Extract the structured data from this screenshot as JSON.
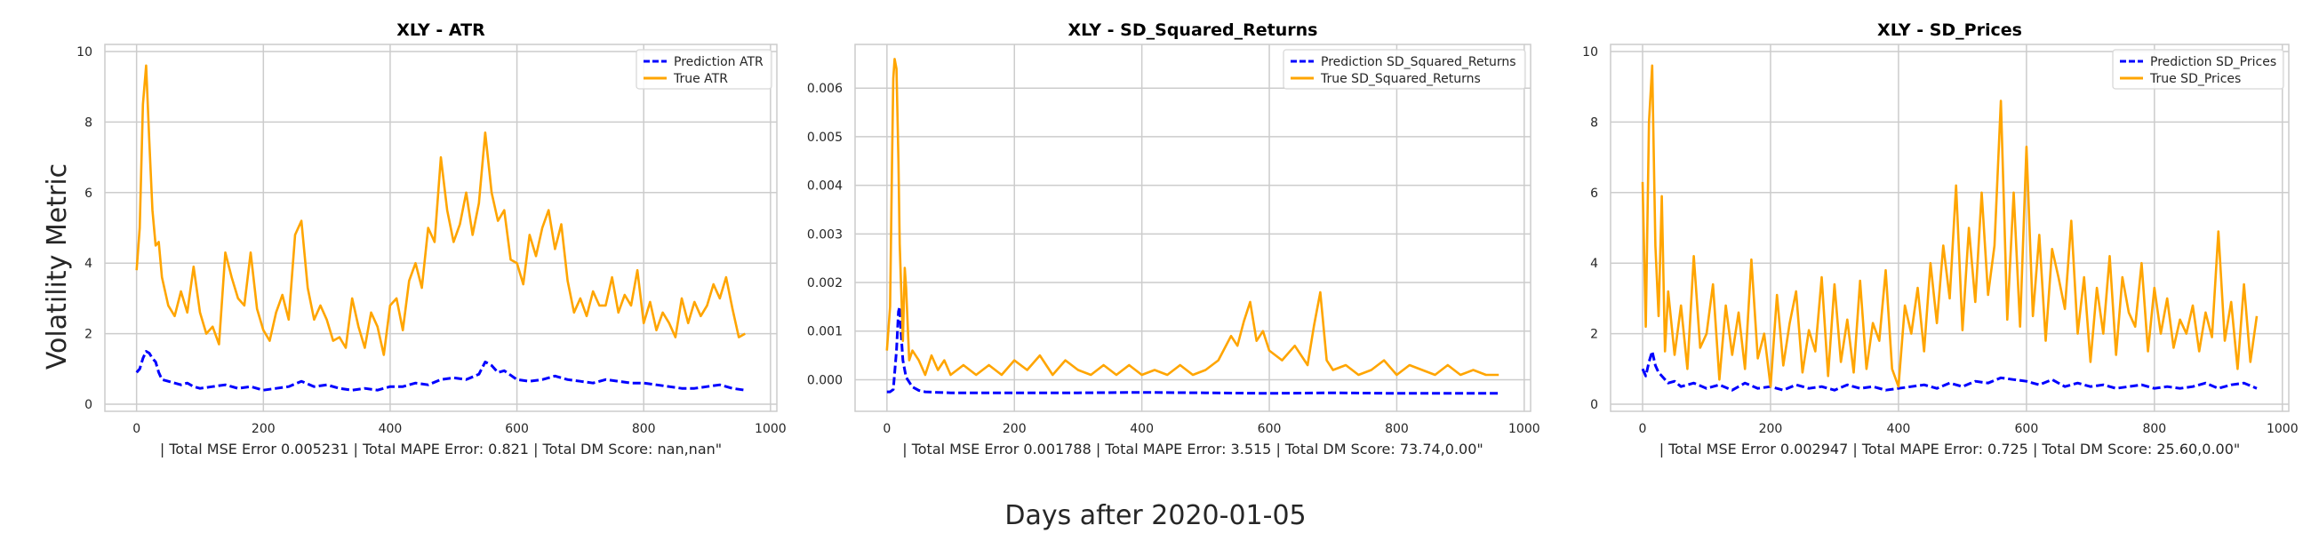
{
  "figure": {
    "supxlabel": "Days after 2020-01-05",
    "supylabel": "Volatility Metric"
  },
  "chart_data": [
    {
      "type": "line",
      "title": "XLY - ATR",
      "xlabel": "| Total MSE Error 0.005231 | Total MAPE Error: 0.821 | Total DM Score: nan,nan\"",
      "xlim": [
        -50,
        1010
      ],
      "ylim": [
        -0.2,
        10.2
      ],
      "xticks": [
        0,
        200,
        400,
        600,
        800,
        1000
      ],
      "xtick_labels": [
        "0",
        "200",
        "400",
        "600",
        "800",
        "1000"
      ],
      "yticks": [
        0,
        2,
        4,
        6,
        8,
        10
      ],
      "ytick_labels": [
        "0",
        "2",
        "4",
        "6",
        "8",
        "10"
      ],
      "grid": true,
      "legend_loc": "upper-right",
      "series": [
        {
          "name": "Prediction ATR",
          "color": "#0000ff",
          "style": "dashed",
          "x": [
            0,
            5,
            10,
            15,
            20,
            25,
            30,
            35,
            40,
            50,
            60,
            70,
            80,
            90,
            100,
            120,
            140,
            160,
            180,
            200,
            220,
            240,
            260,
            280,
            300,
            320,
            340,
            360,
            380,
            400,
            420,
            440,
            460,
            480,
            500,
            520,
            540,
            550,
            560,
            570,
            580,
            600,
            620,
            640,
            660,
            680,
            700,
            720,
            740,
            760,
            780,
            800,
            820,
            840,
            860,
            880,
            900,
            920,
            940,
            960
          ],
          "y": [
            0.9,
            1.0,
            1.3,
            1.5,
            1.45,
            1.3,
            1.2,
            0.9,
            0.7,
            0.65,
            0.6,
            0.55,
            0.6,
            0.5,
            0.45,
            0.5,
            0.55,
            0.45,
            0.5,
            0.4,
            0.45,
            0.5,
            0.65,
            0.5,
            0.55,
            0.45,
            0.4,
            0.45,
            0.4,
            0.5,
            0.5,
            0.6,
            0.55,
            0.7,
            0.75,
            0.7,
            0.85,
            1.2,
            1.1,
            0.9,
            0.95,
            0.7,
            0.65,
            0.7,
            0.8,
            0.7,
            0.65,
            0.6,
            0.7,
            0.65,
            0.6,
            0.6,
            0.55,
            0.5,
            0.45,
            0.45,
            0.5,
            0.55,
            0.45,
            0.4
          ]
        },
        {
          "name": "True ATR",
          "color": "#ffa500",
          "style": "solid",
          "x": [
            0,
            5,
            10,
            15,
            20,
            25,
            30,
            35,
            40,
            50,
            60,
            70,
            80,
            90,
            100,
            110,
            120,
            130,
            140,
            150,
            160,
            170,
            180,
            190,
            200,
            210,
            220,
            230,
            240,
            250,
            260,
            270,
            280,
            290,
            300,
            310,
            320,
            330,
            340,
            350,
            360,
            370,
            380,
            390,
            400,
            410,
            420,
            430,
            440,
            450,
            460,
            470,
            480,
            490,
            500,
            510,
            520,
            530,
            540,
            550,
            560,
            570,
            580,
            590,
            600,
            610,
            620,
            630,
            640,
            650,
            660,
            670,
            680,
            690,
            700,
            710,
            720,
            730,
            740,
            750,
            760,
            770,
            780,
            790,
            800,
            810,
            820,
            830,
            840,
            850,
            860,
            870,
            880,
            890,
            900,
            910,
            920,
            930,
            940,
            950,
            960
          ],
          "y": [
            3.8,
            5.0,
            8.5,
            9.6,
            7.5,
            5.5,
            4.5,
            4.6,
            3.6,
            2.8,
            2.5,
            3.2,
            2.6,
            3.9,
            2.6,
            2.0,
            2.2,
            1.7,
            4.3,
            3.6,
            3.0,
            2.8,
            4.3,
            2.7,
            2.1,
            1.8,
            2.6,
            3.1,
            2.4,
            4.8,
            5.2,
            3.3,
            2.4,
            2.8,
            2.4,
            1.8,
            1.9,
            1.6,
            3.0,
            2.2,
            1.6,
            2.6,
            2.2,
            1.4,
            2.8,
            3.0,
            2.1,
            3.5,
            4.0,
            3.3,
            5.0,
            4.6,
            7.0,
            5.5,
            4.6,
            5.1,
            6.0,
            4.8,
            5.7,
            7.7,
            6.0,
            5.2,
            5.5,
            4.1,
            4.0,
            3.4,
            4.8,
            4.2,
            5.0,
            5.5,
            4.4,
            5.1,
            3.5,
            2.6,
            3.0,
            2.5,
            3.2,
            2.8,
            2.8,
            3.6,
            2.6,
            3.1,
            2.8,
            3.8,
            2.3,
            2.9,
            2.1,
            2.6,
            2.3,
            1.9,
            3.0,
            2.3,
            2.9,
            2.5,
            2.8,
            3.4,
            3.0,
            3.6,
            2.7,
            1.9,
            2.0
          ]
        }
      ]
    },
    {
      "type": "line",
      "title": "XLY - SD_Squared_Returns",
      "xlabel": "| Total MSE Error 0.001788 | Total MAPE Error: 3.515 | Total DM Score: 73.74,0.00\"",
      "xlim": [
        -50,
        1010
      ],
      "ylim": [
        -0.00065,
        0.0069
      ],
      "xticks": [
        0,
        200,
        400,
        600,
        800,
        1000
      ],
      "xtick_labels": [
        "0",
        "200",
        "400",
        "600",
        "800",
        "1000"
      ],
      "yticks": [
        0,
        0.001,
        0.002,
        0.003,
        0.004,
        0.005,
        0.006
      ],
      "ytick_labels": [
        "0.000",
        "0.001",
        "0.002",
        "0.003",
        "0.004",
        "0.005",
        "0.006"
      ],
      "grid": true,
      "legend_loc": "upper-right",
      "series": [
        {
          "name": "Prediction SD_Squared_Returns",
          "color": "#0000ff",
          "style": "dashed",
          "x": [
            0,
            5,
            10,
            15,
            18,
            20,
            22,
            25,
            30,
            40,
            50,
            60,
            80,
            100,
            150,
            200,
            300,
            400,
            500,
            600,
            700,
            800,
            900,
            960
          ],
          "y": [
            -0.00025,
            -0.00025,
            -0.0002,
            0.0006,
            0.0014,
            0.0015,
            0.001,
            0.0004,
            5e-05,
            -0.00015,
            -0.00022,
            -0.00025,
            -0.00026,
            -0.00027,
            -0.00027,
            -0.00027,
            -0.00027,
            -0.00026,
            -0.00027,
            -0.00028,
            -0.00027,
            -0.00028,
            -0.00028,
            -0.00028
          ]
        },
        {
          "name": "True SD_Squared_Returns",
          "color": "#ffa500",
          "style": "solid",
          "x": [
            0,
            5,
            8,
            10,
            12,
            15,
            18,
            20,
            25,
            28,
            30,
            35,
            40,
            45,
            50,
            60,
            70,
            80,
            90,
            100,
            120,
            140,
            160,
            180,
            200,
            220,
            240,
            260,
            280,
            300,
            320,
            340,
            360,
            380,
            400,
            420,
            440,
            460,
            480,
            500,
            520,
            540,
            550,
            560,
            570,
            580,
            590,
            600,
            620,
            640,
            660,
            670,
            680,
            690,
            700,
            720,
            740,
            760,
            780,
            800,
            820,
            840,
            860,
            880,
            900,
            920,
            940,
            960
          ],
          "y": [
            0.0006,
            0.0015,
            0.0045,
            0.0062,
            0.0066,
            0.0064,
            0.0045,
            0.0028,
            0.0008,
            0.0023,
            0.0019,
            0.0004,
            0.0006,
            0.0005,
            0.0004,
            0.0001,
            0.0005,
            0.0002,
            0.0004,
            0.0001,
            0.0003,
            0.0001,
            0.0003,
            0.0001,
            0.0004,
            0.0002,
            0.0005,
            0.0001,
            0.0004,
            0.0002,
            0.0001,
            0.0003,
            0.0001,
            0.0003,
            0.0001,
            0.0002,
            0.0001,
            0.0003,
            0.0001,
            0.0002,
            0.0004,
            0.0009,
            0.0007,
            0.0012,
            0.0016,
            0.0008,
            0.001,
            0.0006,
            0.0004,
            0.0007,
            0.0003,
            0.0011,
            0.0018,
            0.0004,
            0.0002,
            0.0003,
            0.0001,
            0.0002,
            0.0004,
            0.0001,
            0.0003,
            0.0002,
            0.0001,
            0.0003,
            0.0001,
            0.0002,
            0.0001,
            0.0001
          ]
        }
      ]
    },
    {
      "type": "line",
      "title": "XLY - SD_Prices",
      "xlabel": "| Total MSE Error 0.002947 | Total MAPE Error: 0.725 | Total DM Score: 25.60,0.00\"",
      "xlim": [
        -50,
        1010
      ],
      "ylim": [
        -0.2,
        10.2
      ],
      "xticks": [
        0,
        200,
        400,
        600,
        800,
        1000
      ],
      "xtick_labels": [
        "0",
        "200",
        "400",
        "600",
        "800",
        "1000"
      ],
      "yticks": [
        0,
        2,
        4,
        6,
        8,
        10
      ],
      "ytick_labels": [
        "0",
        "2",
        "4",
        "6",
        "8",
        "10"
      ],
      "grid": true,
      "legend_loc": "upper-right",
      "series": [
        {
          "name": "Prediction SD_Prices",
          "color": "#0000ff",
          "style": "dashed",
          "x": [
            0,
            5,
            10,
            15,
            20,
            25,
            30,
            35,
            40,
            50,
            60,
            80,
            100,
            120,
            140,
            160,
            180,
            200,
            220,
            240,
            260,
            280,
            300,
            320,
            340,
            360,
            380,
            400,
            420,
            440,
            460,
            480,
            500,
            520,
            540,
            560,
            580,
            600,
            620,
            640,
            660,
            680,
            700,
            720,
            740,
            760,
            780,
            800,
            820,
            840,
            860,
            880,
            900,
            920,
            940,
            960
          ],
          "y": [
            1.0,
            0.8,
            1.2,
            1.5,
            1.1,
            0.9,
            0.8,
            0.7,
            0.6,
            0.65,
            0.5,
            0.6,
            0.45,
            0.55,
            0.4,
            0.6,
            0.45,
            0.5,
            0.4,
            0.55,
            0.45,
            0.5,
            0.4,
            0.55,
            0.45,
            0.5,
            0.4,
            0.45,
            0.5,
            0.55,
            0.45,
            0.6,
            0.5,
            0.65,
            0.6,
            0.75,
            0.7,
            0.65,
            0.55,
            0.7,
            0.5,
            0.6,
            0.5,
            0.55,
            0.45,
            0.5,
            0.55,
            0.45,
            0.5,
            0.45,
            0.5,
            0.6,
            0.45,
            0.55,
            0.6,
            0.45
          ]
        },
        {
          "name": "True SD_Prices",
          "color": "#ffa500",
          "style": "solid",
          "x": [
            0,
            5,
            10,
            15,
            20,
            25,
            30,
            35,
            40,
            50,
            60,
            70,
            80,
            90,
            100,
            110,
            120,
            130,
            140,
            150,
            160,
            170,
            180,
            190,
            200,
            210,
            220,
            230,
            240,
            250,
            260,
            270,
            280,
            290,
            300,
            310,
            320,
            330,
            340,
            350,
            360,
            370,
            380,
            390,
            400,
            410,
            420,
            430,
            440,
            450,
            460,
            470,
            480,
            490,
            500,
            510,
            520,
            530,
            540,
            550,
            560,
            570,
            580,
            590,
            600,
            610,
            620,
            630,
            640,
            650,
            660,
            670,
            680,
            690,
            700,
            710,
            720,
            730,
            740,
            750,
            760,
            770,
            780,
            790,
            800,
            810,
            820,
            830,
            840,
            850,
            860,
            870,
            880,
            890,
            900,
            910,
            920,
            930,
            940,
            950,
            960
          ],
          "y": [
            6.3,
            2.2,
            8.0,
            9.6,
            4.5,
            2.5,
            5.9,
            1.5,
            3.2,
            1.4,
            2.8,
            1.0,
            4.2,
            1.6,
            2.0,
            3.4,
            0.7,
            2.8,
            1.4,
            2.6,
            1.0,
            4.1,
            1.3,
            2.0,
            0.5,
            3.1,
            1.1,
            2.3,
            3.2,
            0.9,
            2.1,
            1.5,
            3.6,
            0.8,
            3.4,
            1.2,
            2.4,
            0.9,
            3.5,
            1.0,
            2.3,
            1.8,
            3.8,
            1.0,
            0.5,
            2.8,
            2.0,
            3.3,
            1.5,
            4.0,
            2.3,
            4.5,
            3.0,
            6.2,
            2.1,
            5.0,
            2.9,
            6.0,
            3.1,
            4.5,
            8.6,
            2.4,
            6.0,
            2.2,
            7.3,
            2.5,
            4.8,
            1.8,
            4.4,
            3.6,
            2.7,
            5.2,
            2.0,
            3.6,
            1.2,
            3.3,
            2.0,
            4.2,
            1.4,
            3.6,
            2.6,
            2.2,
            4.0,
            1.5,
            3.3,
            2.0,
            3.0,
            1.6,
            2.4,
            2.0,
            2.8,
            1.5,
            2.6,
            1.9,
            4.9,
            1.8,
            2.9,
            1.0,
            3.4,
            1.2,
            2.5
          ]
        }
      ]
    }
  ]
}
